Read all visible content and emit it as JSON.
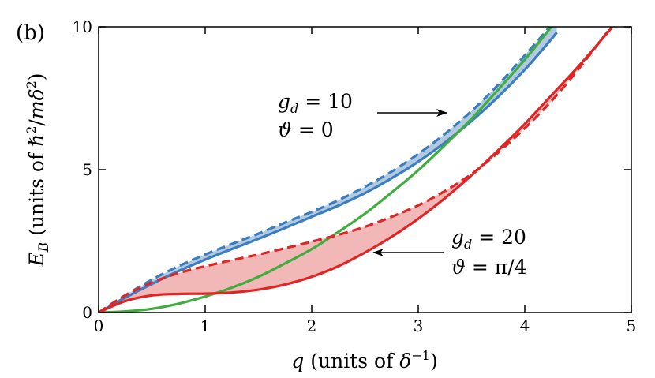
{
  "panel_label": "(b)",
  "chart_data": {
    "type": "line",
    "xlabel": "q (units of δ⁻¹)",
    "ylabel": "E_B (units of ℏ²/mδ²)",
    "xlim": [
      0,
      5
    ],
    "ylim": [
      0,
      10
    ],
    "x_ticks": [
      0,
      1,
      2,
      3,
      4,
      5
    ],
    "y_ticks": [
      0,
      5,
      10
    ],
    "x_tick_labels": [
      "0",
      "1",
      "2",
      "3",
      "4",
      "5"
    ],
    "y_tick_labels": [
      "0",
      "5",
      "10"
    ],
    "grid": false,
    "series": [
      {
        "color": "#3a7ebf",
        "style": "dashed",
        "x": [
          0,
          0.25,
          0.5,
          0.75,
          1.0,
          1.25,
          1.5,
          1.75,
          2.0,
          2.25,
          2.5,
          2.75,
          3.0,
          3.25,
          3.5,
          3.75,
          4.0,
          4.2,
          4.3
        ],
        "y": [
          0,
          0.6,
          1.15,
          1.62,
          2.03,
          2.4,
          2.76,
          3.15,
          3.52,
          3.93,
          4.4,
          4.93,
          5.55,
          6.25,
          7.05,
          7.97,
          9.0,
          9.85,
          10.3
        ]
      },
      {
        "color": "#3a7ebf",
        "style": "solid",
        "x": [
          0,
          0.25,
          0.5,
          0.75,
          1.0,
          1.25,
          1.5,
          1.75,
          2.0,
          2.25,
          2.5,
          2.75,
          3.0,
          3.25,
          3.5,
          3.75,
          4.0,
          4.2,
          4.3
        ],
        "y": [
          0,
          0.52,
          1.0,
          1.45,
          1.85,
          2.22,
          2.58,
          2.96,
          3.35,
          3.74,
          4.18,
          4.7,
          5.28,
          5.95,
          6.7,
          7.55,
          8.5,
          9.35,
          9.8
        ]
      },
      {
        "color": "#3fae3f",
        "style": "solid",
        "x": [
          0,
          0.25,
          0.5,
          0.75,
          1.0,
          1.25,
          1.5,
          1.75,
          2.0,
          2.25,
          2.5,
          2.75,
          3.0,
          3.25,
          3.5,
          3.75,
          4.0,
          4.25,
          4.45
        ],
        "y": [
          0,
          0.04,
          0.13,
          0.31,
          0.56,
          0.87,
          1.25,
          1.72,
          2.22,
          2.82,
          3.46,
          4.2,
          4.98,
          5.86,
          6.78,
          7.8,
          8.85,
          10.0,
          10.9
        ]
      },
      {
        "color": "#e02525",
        "style": "dashed",
        "x": [
          0,
          0.25,
          0.5,
          0.75,
          1.0,
          1.25,
          1.5,
          1.75,
          2.0,
          2.25,
          2.5,
          2.75,
          3.0,
          3.25,
          3.5,
          3.75,
          4.0,
          4.25,
          4.5,
          4.75,
          5.0
        ],
        "y": [
          0,
          0.6,
          1.05,
          1.38,
          1.62,
          1.83,
          2.03,
          2.25,
          2.48,
          2.72,
          3.0,
          3.35,
          3.75,
          4.25,
          4.85,
          5.6,
          6.45,
          7.4,
          8.5,
          9.7,
          10.9
        ]
      },
      {
        "color": "#e02525",
        "style": "solid",
        "x": [
          0,
          0.25,
          0.5,
          0.75,
          1.0,
          1.25,
          1.5,
          1.75,
          2.0,
          2.25,
          2.5,
          2.75,
          3.0,
          3.25,
          3.5,
          3.75,
          4.0,
          4.25,
          4.5,
          4.75,
          5.0
        ],
        "y": [
          0,
          0.4,
          0.6,
          0.65,
          0.66,
          0.7,
          0.8,
          0.98,
          1.25,
          1.62,
          2.1,
          2.65,
          3.28,
          4.0,
          4.8,
          5.68,
          6.6,
          7.6,
          8.6,
          9.68,
          10.8
        ]
      }
    ],
    "fills": [
      {
        "between": [
          0,
          1
        ],
        "color": "#b3c9e2"
      },
      {
        "between": [
          3,
          4
        ],
        "color": "#f2b7b7"
      }
    ],
    "annotations": [
      {
        "lines": [
          "g_d = 10",
          "ϑ = 0"
        ],
        "arrow_to": [
          3.3,
          6.9
        ]
      },
      {
        "lines": [
          "g_d = 20",
          "ϑ = π/4"
        ],
        "arrow_to": [
          2.55,
          2.1
        ]
      }
    ]
  }
}
